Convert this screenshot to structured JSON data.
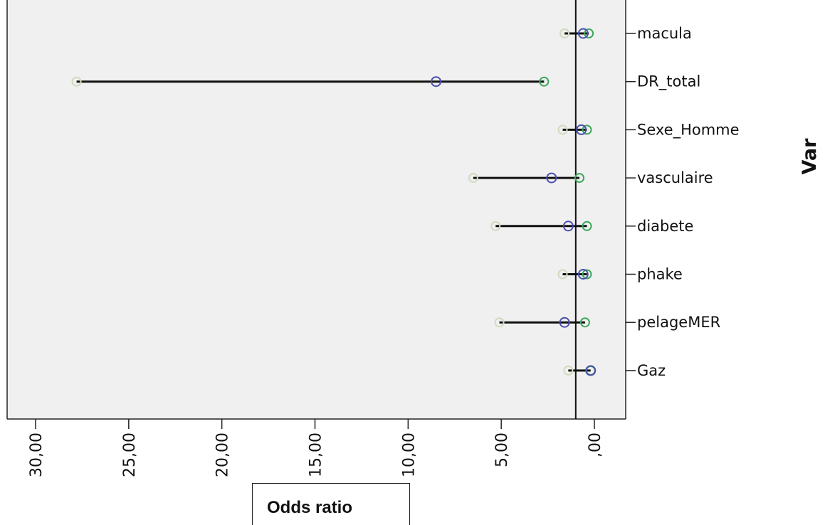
{
  "chart_data": {
    "type": "scatter",
    "orientation": "horizontal",
    "xlabel": "Odds ratio",
    "ylabel": "Var",
    "x_reversed": true,
    "xlim": [
      0,
      31
    ],
    "x_ticks": [
      30,
      25,
      20,
      15,
      10,
      5,
      0
    ],
    "x_tick_labels": [
      "30,00",
      "25,00",
      "20,00",
      "15,00",
      "10,00",
      "5,00",
      ",00"
    ],
    "reference_line_x": 1,
    "categories": [
      "macula",
      "DR_total",
      "Sexe_Homme",
      "vasculaire",
      "diabete",
      "phake",
      "pelageMER",
      "Gaz"
    ],
    "series": [
      {
        "name": "",
        "color": "#4a4fb0",
        "values": [
          0.6,
          8.5,
          0.7,
          2.3,
          1.4,
          0.6,
          1.6,
          0.2
        ]
      },
      {
        "name": "",
        "color": "#3da85a",
        "values": [
          0.3,
          2.7,
          0.4,
          0.8,
          0.4,
          0.4,
          0.5,
          0.2
        ]
      },
      {
        "name": "",
        "color": "#cfdcbf",
        "values": [
          1.6,
          27.8,
          1.7,
          6.5,
          5.3,
          1.7,
          5.1,
          1.4
        ]
      }
    ],
    "grid": false,
    "background": "#f0f0f0"
  }
}
